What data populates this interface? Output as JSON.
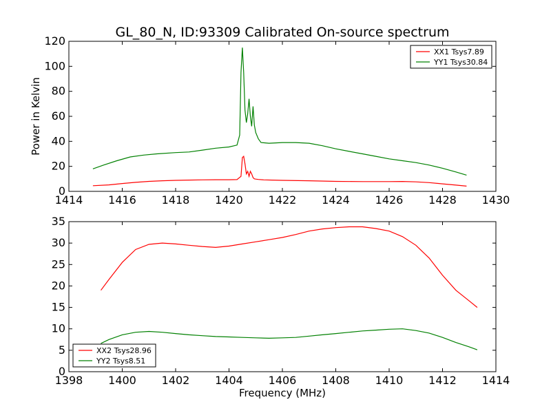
{
  "figure_title": "GL_80_N, ID:93309 Calibrated On-source spectrum",
  "colors": {
    "red": "#ff0000",
    "green": "#008000"
  },
  "chart_data": [
    {
      "type": "line",
      "title": "GL_80_N, ID:93309 Calibrated On-source spectrum",
      "xlabel": "",
      "ylabel": "Power in Kelvin",
      "xlim": [
        1414,
        1430
      ],
      "ylim": [
        0,
        120
      ],
      "xticks": [
        1414,
        1416,
        1418,
        1420,
        1422,
        1424,
        1426,
        1428,
        1430
      ],
      "yticks": [
        0,
        20,
        40,
        60,
        80,
        100,
        120
      ],
      "grid": false,
      "legend_position": "top-right",
      "series": [
        {
          "name": "XX1 Tsys7.89",
          "color": "#ff0000",
          "x": [
            1414.9,
            1415.5,
            1416,
            1416.5,
            1417,
            1417.5,
            1418,
            1418.5,
            1419,
            1419.5,
            1420,
            1420.3,
            1420.45,
            1420.5,
            1420.55,
            1420.6,
            1420.65,
            1420.7,
            1420.75,
            1420.8,
            1420.85,
            1420.9,
            1420.95,
            1421.0,
            1421.1,
            1421.3,
            1421.6,
            1422,
            1423,
            1424,
            1425,
            1426,
            1426.5,
            1427,
            1427.5,
            1428,
            1428.5,
            1428.9
          ],
          "y": [
            4.5,
            5.2,
            6.3,
            7.2,
            8.0,
            8.5,
            8.8,
            9.0,
            9.2,
            9.3,
            9.3,
            9.4,
            12,
            27,
            28,
            22,
            14,
            16,
            12,
            16,
            14,
            11,
            10,
            9.8,
            9.5,
            9.2,
            9.0,
            8.8,
            8.5,
            8.0,
            7.8,
            7.8,
            7.9,
            7.6,
            7.0,
            6.0,
            5.0,
            4.2
          ]
        },
        {
          "name": "YY1 Tsys30.84",
          "color": "#008000",
          "x": [
            1414.9,
            1415.3,
            1415.8,
            1416.3,
            1416.8,
            1417.3,
            1418,
            1418.5,
            1419,
            1419.5,
            1420,
            1420.3,
            1420.4,
            1420.45,
            1420.5,
            1420.55,
            1420.6,
            1420.65,
            1420.7,
            1420.75,
            1420.8,
            1420.85,
            1420.9,
            1420.95,
            1421.0,
            1421.1,
            1421.2,
            1421.5,
            1422,
            1422.5,
            1423,
            1423.5,
            1424,
            1424.5,
            1425,
            1425.5,
            1426,
            1426.5,
            1427,
            1427.5,
            1428,
            1428.5,
            1428.9
          ],
          "y": [
            18,
            21,
            24.5,
            27.5,
            29,
            30,
            31,
            31.5,
            33,
            34.5,
            35.5,
            37,
            45,
            95,
            115,
            95,
            65,
            55,
            62,
            74,
            60,
            52,
            68,
            53,
            47,
            42,
            39,
            38.5,
            39,
            39,
            38.5,
            36.5,
            34,
            32,
            30,
            28,
            26,
            24.5,
            23,
            21,
            18.5,
            15.5,
            13
          ]
        }
      ]
    },
    {
      "type": "line",
      "title": "",
      "xlabel": "Frequency (MHz)",
      "ylabel": "",
      "xlim": [
        1398,
        1414
      ],
      "ylim": [
        0,
        35
      ],
      "xticks": [
        1398,
        1400,
        1402,
        1404,
        1406,
        1408,
        1410,
        1412,
        1414
      ],
      "yticks": [
        0,
        5,
        10,
        15,
        20,
        25,
        30,
        35
      ],
      "grid": false,
      "legend_position": "bottom-left",
      "series": [
        {
          "name": "XX2 Tsys28.96",
          "color": "#ff0000",
          "x": [
            1399.2,
            1399.5,
            1400,
            1400.5,
            1401,
            1401.5,
            1402,
            1402.5,
            1403,
            1403.5,
            1404,
            1404.5,
            1405,
            1405.5,
            1406,
            1406.5,
            1407,
            1407.5,
            1408,
            1408.5,
            1409,
            1409.5,
            1410,
            1410.5,
            1411,
            1411.5,
            1412,
            1412.5,
            1413,
            1413.3
          ],
          "y": [
            19,
            21.5,
            25.5,
            28.5,
            29.7,
            30,
            29.8,
            29.5,
            29.2,
            29.0,
            29.3,
            29.8,
            30.3,
            30.8,
            31.3,
            32,
            32.8,
            33.3,
            33.6,
            33.8,
            33.8,
            33.4,
            32.8,
            31.5,
            29.5,
            26.5,
            22.5,
            19,
            16.5,
            15
          ]
        },
        {
          "name": "YY2 Tsys8.51",
          "color": "#008000",
          "x": [
            1399.2,
            1399.5,
            1400,
            1400.5,
            1401,
            1401.5,
            1402,
            1402.5,
            1403,
            1403.5,
            1404,
            1404.5,
            1405,
            1405.5,
            1406,
            1406.5,
            1407,
            1407.5,
            1408,
            1408.5,
            1409,
            1409.5,
            1410,
            1410.5,
            1411,
            1411.5,
            1412,
            1412.5,
            1413,
            1413.3
          ],
          "y": [
            6.6,
            7.5,
            8.6,
            9.2,
            9.4,
            9.2,
            8.9,
            8.6,
            8.4,
            8.2,
            8.1,
            8.0,
            7.9,
            7.8,
            7.9,
            8.0,
            8.3,
            8.6,
            8.9,
            9.2,
            9.5,
            9.7,
            9.9,
            10.0,
            9.6,
            9.0,
            8.0,
            6.8,
            5.8,
            5.1
          ]
        }
      ]
    }
  ]
}
